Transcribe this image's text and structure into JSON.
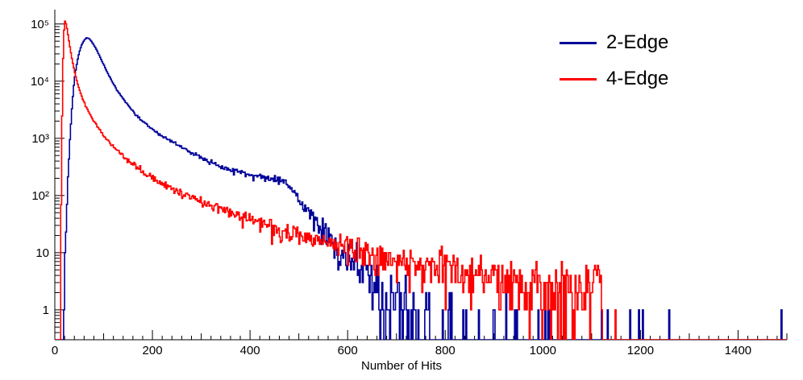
{
  "chart_data": {
    "type": "line",
    "subtype": "step-histogram",
    "title": "",
    "xlabel": "Number of Hits",
    "ylabel": "",
    "xlim": [
      0,
      1500
    ],
    "ylim": [
      0.3,
      178000
    ],
    "yscale": "log",
    "grid": false,
    "legend_position": "top-right",
    "x_ticks": [
      0,
      200,
      400,
      600,
      800,
      1000,
      1200,
      1400
    ],
    "x_minor_tick_step": 20,
    "x_medium_tick_step": 100,
    "y_ticks": [
      1,
      10,
      100,
      1000,
      10000,
      100000
    ],
    "y_tick_labels": [
      "1",
      "10",
      "10²",
      "10³",
      "10⁴",
      "10⁵"
    ],
    "bin_width": 2,
    "noise_model": "poisson",
    "random_seed": 1337,
    "axis_color": "#000000",
    "series": [
      {
        "name": "2-Edge",
        "color": "#000099",
        "anchors": [
          [
            18,
            1
          ],
          [
            22,
            15
          ],
          [
            26,
            120
          ],
          [
            30,
            700
          ],
          [
            34,
            2500
          ],
          [
            38,
            7000
          ],
          [
            42,
            14000
          ],
          [
            46,
            22000
          ],
          [
            50,
            32000
          ],
          [
            55,
            43000
          ],
          [
            60,
            52000
          ],
          [
            65,
            57000
          ],
          [
            70,
            56000
          ],
          [
            75,
            50000
          ],
          [
            80,
            43000
          ],
          [
            85,
            36000
          ],
          [
            90,
            30000
          ],
          [
            95,
            24000
          ],
          [
            100,
            19500
          ],
          [
            110,
            13000
          ],
          [
            120,
            9000
          ],
          [
            130,
            6500
          ],
          [
            140,
            4900
          ],
          [
            150,
            3800
          ],
          [
            160,
            3000
          ],
          [
            170,
            2400
          ],
          [
            180,
            2000
          ],
          [
            190,
            1700
          ],
          [
            200,
            1450
          ],
          [
            210,
            1250
          ],
          [
            220,
            1100
          ],
          [
            230,
            975
          ],
          [
            240,
            870
          ],
          [
            250,
            780
          ],
          [
            260,
            700
          ],
          [
            270,
            630
          ],
          [
            280,
            565
          ],
          [
            290,
            510
          ],
          [
            300,
            460
          ],
          [
            310,
            420
          ],
          [
            320,
            385
          ],
          [
            330,
            355
          ],
          [
            340,
            330
          ],
          [
            350,
            308
          ],
          [
            360,
            290
          ],
          [
            370,
            272
          ],
          [
            380,
            256
          ],
          [
            390,
            242
          ],
          [
            400,
            230
          ],
          [
            410,
            220
          ],
          [
            420,
            212
          ],
          [
            430,
            206
          ],
          [
            440,
            200
          ],
          [
            450,
            196
          ],
          [
            460,
            188
          ],
          [
            470,
            172
          ],
          [
            480,
            145
          ],
          [
            490,
            115
          ],
          [
            500,
            88
          ],
          [
            510,
            66
          ],
          [
            520,
            50
          ],
          [
            530,
            38
          ],
          [
            540,
            30
          ],
          [
            550,
            24
          ],
          [
            560,
            19
          ],
          [
            570,
            15
          ],
          [
            580,
            12
          ],
          [
            590,
            10
          ],
          [
            600,
            8.5
          ],
          [
            610,
            7
          ],
          [
            620,
            6
          ],
          [
            630,
            5
          ],
          [
            640,
            4.2
          ],
          [
            650,
            3.6
          ],
          [
            660,
            3
          ],
          [
            670,
            2.6
          ],
          [
            680,
            2.2
          ],
          [
            690,
            1.9
          ],
          [
            700,
            1.6
          ],
          [
            720,
            1.2
          ],
          [
            740,
            0.9
          ],
          [
            760,
            0.7
          ],
          [
            780,
            0.55
          ],
          [
            800,
            0.45
          ],
          [
            850,
            0.3
          ],
          [
            900,
            0.22
          ],
          [
            950,
            0.18
          ],
          [
            1000,
            0.15
          ],
          [
            1050,
            0.12
          ],
          [
            1100,
            0.1
          ],
          [
            1150,
            0.08
          ],
          [
            1200,
            0.03
          ]
        ],
        "extra_spikes": [
          [
            1178,
            1
          ],
          [
            1205,
            1
          ],
          [
            1258,
            1
          ],
          [
            1489,
            1
          ]
        ]
      },
      {
        "name": "4-Edge",
        "color": "#ff0000",
        "anchors": [
          [
            11,
            1
          ],
          [
            13,
            60
          ],
          [
            15,
            2500
          ],
          [
            17,
            25000
          ],
          [
            19,
            78000
          ],
          [
            21,
            112000
          ],
          [
            23,
            101000
          ],
          [
            25,
            83000
          ],
          [
            27,
            65000
          ],
          [
            30,
            45000
          ],
          [
            33,
            31000
          ],
          [
            36,
            22500
          ],
          [
            40,
            15500
          ],
          [
            44,
            11000
          ],
          [
            48,
            8300
          ],
          [
            52,
            6500
          ],
          [
            56,
            5200
          ],
          [
            60,
            4300
          ],
          [
            65,
            3400
          ],
          [
            70,
            2800
          ],
          [
            75,
            2350
          ],
          [
            80,
            2000
          ],
          [
            85,
            1700
          ],
          [
            90,
            1480
          ],
          [
            95,
            1290
          ],
          [
            100,
            1130
          ],
          [
            110,
            890
          ],
          [
            120,
            720
          ],
          [
            130,
            590
          ],
          [
            140,
            490
          ],
          [
            150,
            415
          ],
          [
            160,
            355
          ],
          [
            170,
            305
          ],
          [
            180,
            265
          ],
          [
            190,
            232
          ],
          [
            200,
            205
          ],
          [
            210,
            182
          ],
          [
            220,
            162
          ],
          [
            230,
            146
          ],
          [
            240,
            132
          ],
          [
            250,
            120
          ],
          [
            260,
            109
          ],
          [
            270,
            100
          ],
          [
            280,
            92
          ],
          [
            290,
            84
          ],
          [
            300,
            78
          ],
          [
            320,
            67
          ],
          [
            340,
            57
          ],
          [
            360,
            50
          ],
          [
            380,
            43
          ],
          [
            400,
            38
          ],
          [
            420,
            33
          ],
          [
            440,
            29
          ],
          [
            460,
            26
          ],
          [
            480,
            23
          ],
          [
            500,
            21
          ],
          [
            520,
            19
          ],
          [
            540,
            17
          ],
          [
            560,
            15.5
          ],
          [
            580,
            14
          ],
          [
            600,
            13
          ],
          [
            620,
            11.5
          ],
          [
            640,
            10.5
          ],
          [
            660,
            9.5
          ],
          [
            680,
            8.5
          ],
          [
            700,
            7.8
          ],
          [
            720,
            7.2
          ],
          [
            740,
            6.6
          ],
          [
            760,
            6.1
          ],
          [
            780,
            5.7
          ],
          [
            800,
            5.3
          ],
          [
            820,
            5
          ],
          [
            840,
            4.7
          ],
          [
            860,
            4.4
          ],
          [
            880,
            4.1
          ],
          [
            900,
            3.9
          ],
          [
            920,
            3.7
          ],
          [
            940,
            3.5
          ],
          [
            960,
            3.3
          ],
          [
            980,
            3.1
          ],
          [
            1000,
            2.9
          ],
          [
            1020,
            2.7
          ],
          [
            1040,
            2.6
          ],
          [
            1060,
            2.5
          ],
          [
            1080,
            2.6
          ],
          [
            1100,
            3
          ],
          [
            1110,
            3.5
          ],
          [
            1118,
            3
          ],
          [
            1122,
            0.5
          ]
        ],
        "extra_spikes": [
          [
            1148,
            1
          ]
        ]
      }
    ]
  }
}
